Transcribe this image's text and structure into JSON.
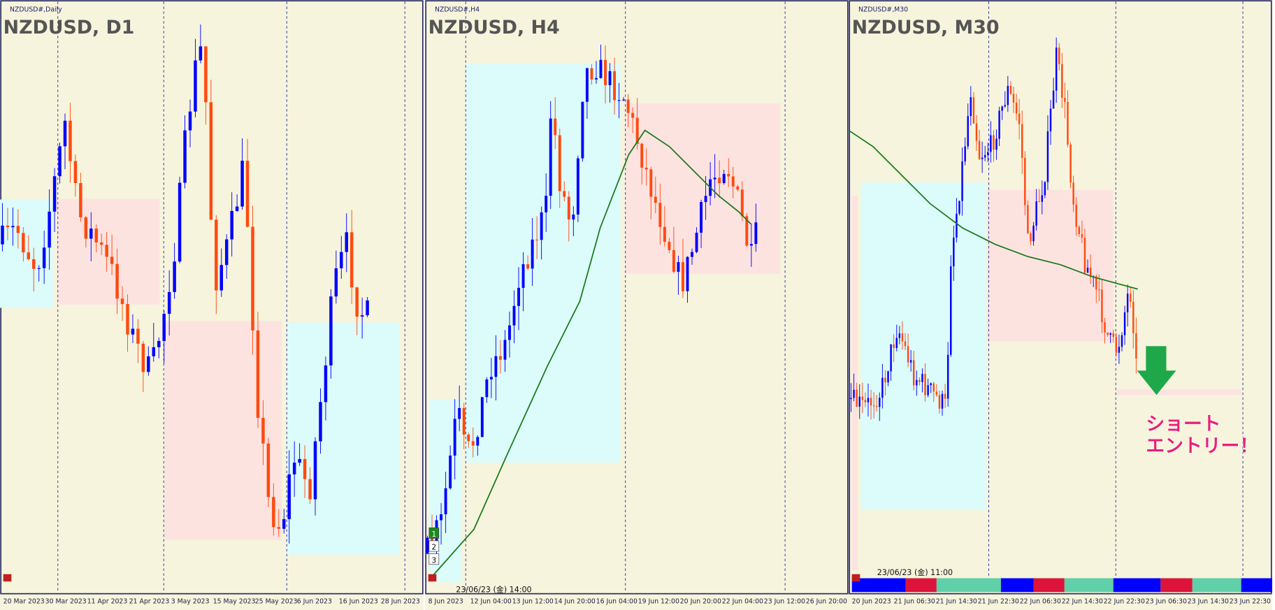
{
  "panels": [
    {
      "symbol_label": "NZDUSD#,Daily",
      "title": "NZDUSD, D1",
      "time_labels": [
        "20 Mar 2023",
        "30 Mar 2023",
        "11 Apr 2023",
        "21 Apr 2023",
        "3 May 2023",
        "15 May 2023",
        "25 May 2023",
        "6 Jun 2023",
        "16 Jun 2023",
        "28 Jun 2023"
      ]
    },
    {
      "symbol_label": "NZDUSD#,H4",
      "title": "NZDUSD, H4",
      "time_labels": [
        "8 Jun 2023",
        "12 Jun 04:00",
        "13 Jun 12:00",
        "14 Jun 20:00",
        "16 Jun 04:00",
        "19 Jun 12:00",
        "20 Jun 20:00",
        "22 Jun 04:00",
        "23 Jun 12:00",
        "26 Jun 20:00"
      ],
      "timestamp": "23/06/23 (金) 14:00",
      "buttons": [
        "1",
        "2",
        "3"
      ]
    },
    {
      "symbol_label": "NZDUSD#,M30",
      "title": "NZDUSD, M30",
      "time_labels": [
        "20 Jun 2023",
        "21 Jun 06:30",
        "21 Jun 14:30",
        "21 Jun 22:30",
        "22 Jun 06:30",
        "22 Jun 14:30",
        "22 Jun 22:30",
        "23 Jun 06:30",
        "23 Jun 14:30",
        "23 Jun 22:30"
      ],
      "timestamp": "23/06/23 (金) 11:00"
    }
  ],
  "annotation": [
    "ショート",
    "エントリー！"
  ]
}
